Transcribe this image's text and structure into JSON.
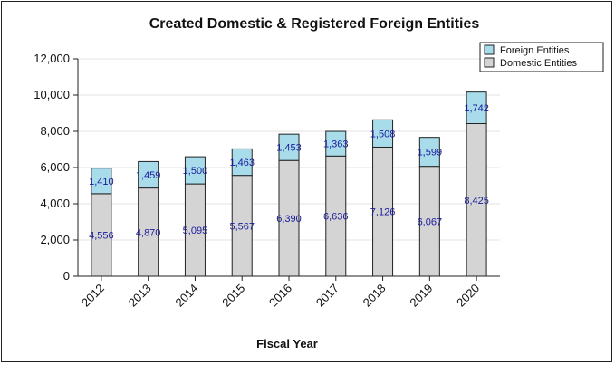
{
  "chart_data": {
    "type": "bar",
    "stacked": true,
    "title": "Created Domestic & Registered Foreign Entities",
    "xlabel": "Fiscal Year",
    "ylabel": "",
    "categories": [
      "2012",
      "2013",
      "2014",
      "2015",
      "2016",
      "2017",
      "2018",
      "2019",
      "2020"
    ],
    "series": [
      {
        "name": "Domestic Entities",
        "color": "#d4d4d4",
        "values": [
          4556,
          4870,
          5095,
          5567,
          6390,
          6636,
          7126,
          6067,
          8425
        ],
        "labels": [
          "4,556",
          "4,870",
          "5,095",
          "5,567",
          "6,390",
          "6,636",
          "7,126",
          "6,067",
          "8,425"
        ]
      },
      {
        "name": "Foreign Entities",
        "color": "#a8dcea",
        "values": [
          1410,
          1459,
          1500,
          1463,
          1453,
          1363,
          1508,
          1599,
          1742
        ],
        "labels": [
          "1,410",
          "1,459",
          "1,500",
          "1,463",
          "1,453",
          "1,363",
          "1,508",
          "1,599",
          "1,742"
        ]
      }
    ],
    "ylim": [
      0,
      12000
    ],
    "yticks": [
      0,
      2000,
      4000,
      6000,
      8000,
      10000,
      12000
    ],
    "ytick_labels": [
      "0",
      "2,000",
      "4,000",
      "6,000",
      "8,000",
      "10,000",
      "12,000"
    ],
    "grid": true,
    "legend_position": "top-right",
    "legend": [
      "Foreign Entities",
      "Domestic Entities"
    ]
  }
}
